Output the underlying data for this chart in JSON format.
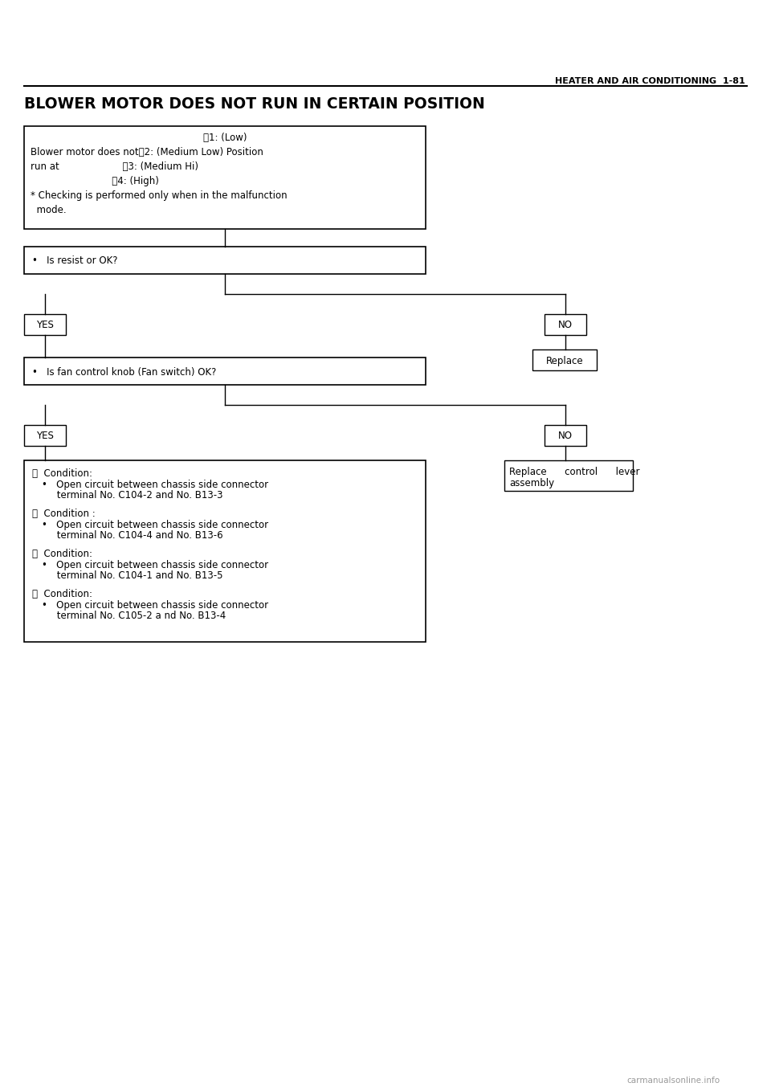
{
  "page_header_right": "HEATER AND AIR CONDITIONING  1-81",
  "page_title": "BLOWER MOTOR DOES NOT RUN IN CERTAIN POSITION",
  "bg_color": "#ffffff",
  "text_color": "#000000",
  "watermark": "carmanualsonline.info",
  "top_box_lines": [
    {
      "Ⓐ": "1: (Low)",
      "prefix": "",
      "center": true
    },
    {
      "text": "Blower motor does notⒷ2: (Medium Low) Position"
    },
    {
      "text": "run at                     Ⓒ3: (Medium Hi)"
    },
    {
      "text": "                           Ⓓ4: (High)"
    },
    {
      "text": "* Checking is performed only when in the malfunction"
    },
    {
      "text": "  mode."
    }
  ],
  "step2_text": "•   Is resist or OK?",
  "yes1_label": "YES",
  "no1_label": "NO",
  "replace1_text": "Replace",
  "step3_text": "•   Is fan control knob (Fan switch) OK?",
  "yes2_label": "YES",
  "no2_label": "NO",
  "replace2_line1": "Replace      control      lever",
  "replace2_line2": "assembly",
  "final_sections": [
    {
      "label": "Ⓐ  Condition:",
      "bullet_lines": [
        "•   Open circuit between chassis side connector",
        "     terminal No. C104-2 and No. B13-3"
      ]
    },
    {
      "label": "Ⓑ  Condition :",
      "bullet_lines": [
        "•   Open circuit between chassis side connector",
        "     terminal No. C104-4 and No. B13-6"
      ]
    },
    {
      "label": "Ⓒ  Condition:",
      "bullet_lines": [
        "•   Open circuit between chassis side connector",
        "     terminal No. C104-1 and No. B13-5"
      ]
    },
    {
      "label": "Ⓓ  Condition:",
      "bullet_lines": [
        "•   Open circuit between chassis side connector",
        "     terminal No. C105-2 a nd No. B13-4"
      ]
    }
  ]
}
